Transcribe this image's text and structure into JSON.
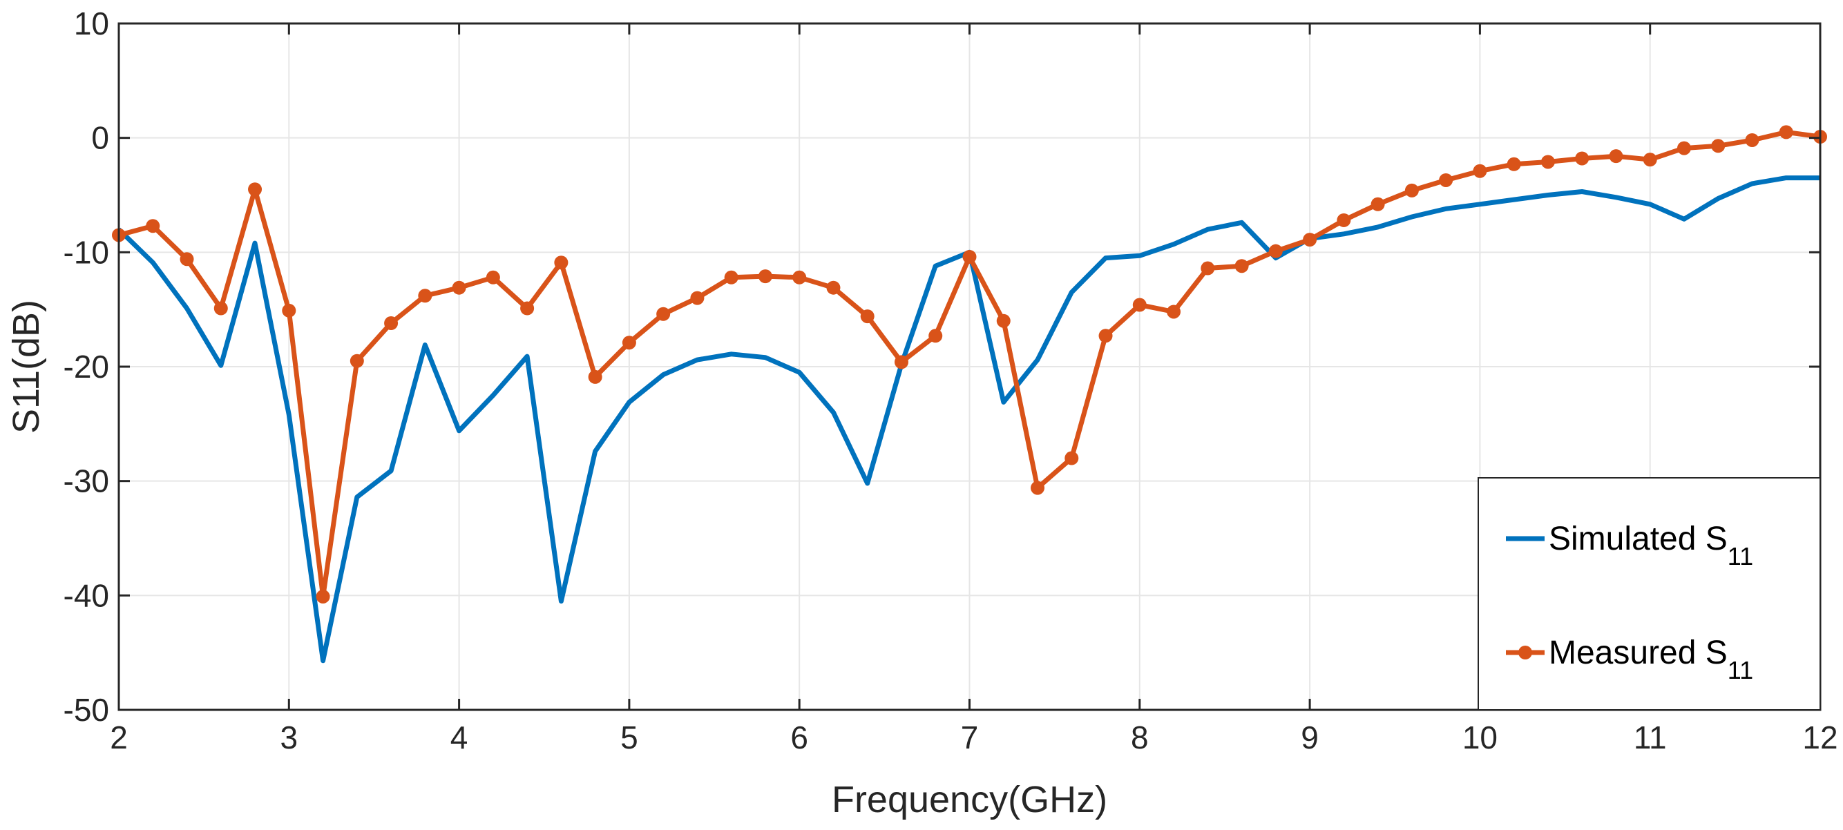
{
  "chart_data": {
    "type": "line",
    "xlabel": "Frequency(GHz)",
    "ylabel": "S11(dB)",
    "xlim": [
      2,
      12
    ],
    "ylim": [
      -50,
      10
    ],
    "xticks": [
      2,
      3,
      4,
      5,
      6,
      7,
      8,
      9,
      10,
      11,
      12
    ],
    "yticks": [
      10,
      0,
      -10,
      -20,
      -30,
      -40,
      -50
    ],
    "grid": true,
    "legend_position": "bottom-right",
    "series": [
      {
        "name": "Simulated S",
        "name_subscript": "11",
        "color": "#0072BD",
        "marker": "none",
        "x": [
          2.0,
          2.2,
          2.4,
          2.6,
          2.8,
          3.0,
          3.2,
          3.4,
          3.6,
          3.8,
          4.0,
          4.2,
          4.4,
          4.6,
          4.8,
          5.0,
          5.2,
          5.4,
          5.6,
          5.8,
          6.0,
          6.2,
          6.4,
          6.6,
          6.8,
          7.0,
          7.2,
          7.4,
          7.6,
          7.8,
          8.0,
          8.2,
          8.4,
          8.6,
          8.8,
          9.0,
          9.2,
          9.4,
          9.6,
          9.8,
          10.0,
          10.2,
          10.4,
          10.6,
          10.8,
          11.0,
          11.2,
          11.4,
          11.6,
          11.8,
          12.0
        ],
        "y": [
          -8.0,
          -10.9,
          -14.9,
          -19.9,
          -9.2,
          -24.2,
          -45.7,
          -31.4,
          -29.1,
          -18.1,
          -25.6,
          -22.5,
          -19.1,
          -40.5,
          -27.4,
          -23.1,
          -20.7,
          -19.4,
          -18.9,
          -19.2,
          -20.5,
          -24.0,
          -30.2,
          -19.8,
          -11.2,
          -10.0,
          -23.1,
          -19.4,
          -13.5,
          -10.5,
          -10.3,
          -9.3,
          -8.0,
          -7.4,
          -10.5,
          -8.8,
          -8.4,
          -7.8,
          -6.9,
          -6.2,
          -5.8,
          -5.4,
          -5.0,
          -4.7,
          -5.2,
          -5.8,
          -7.1,
          -5.3,
          -4.0,
          -3.5,
          -3.5
        ]
      },
      {
        "name": "Measured S",
        "name_subscript": "11",
        "color": "#D95319",
        "marker": "circle",
        "x": [
          2.0,
          2.2,
          2.4,
          2.6,
          2.8,
          3.0,
          3.2,
          3.4,
          3.6,
          3.8,
          4.0,
          4.2,
          4.4,
          4.6,
          4.8,
          5.0,
          5.2,
          5.4,
          5.6,
          5.8,
          6.0,
          6.2,
          6.4,
          6.6,
          6.8,
          7.0,
          7.2,
          7.4,
          7.6,
          7.8,
          8.0,
          8.2,
          8.4,
          8.6,
          8.8,
          9.0,
          9.2,
          9.4,
          9.6,
          9.8,
          10.0,
          10.2,
          10.4,
          10.6,
          10.8,
          11.0,
          11.2,
          11.4,
          11.6,
          11.8,
          12.0
        ],
        "y": [
          -8.5,
          -7.7,
          -10.6,
          -14.9,
          -4.5,
          -15.1,
          -40.1,
          -19.5,
          -16.2,
          -13.8,
          -13.1,
          -12.2,
          -14.9,
          -10.9,
          -20.9,
          -17.9,
          -15.4,
          -14.0,
          -12.2,
          -12.1,
          -12.2,
          -13.1,
          -15.6,
          -19.6,
          -17.3,
          -10.4,
          -16.0,
          -30.6,
          -28.0,
          -17.3,
          -14.6,
          -15.2,
          -11.4,
          -11.2,
          -9.9,
          -8.9,
          -7.2,
          -5.8,
          -4.6,
          -3.7,
          -2.9,
          -2.3,
          -2.1,
          -1.8,
          -1.6,
          -1.9,
          -0.9,
          -0.7,
          -0.2,
          0.5,
          0.1
        ]
      }
    ]
  }
}
